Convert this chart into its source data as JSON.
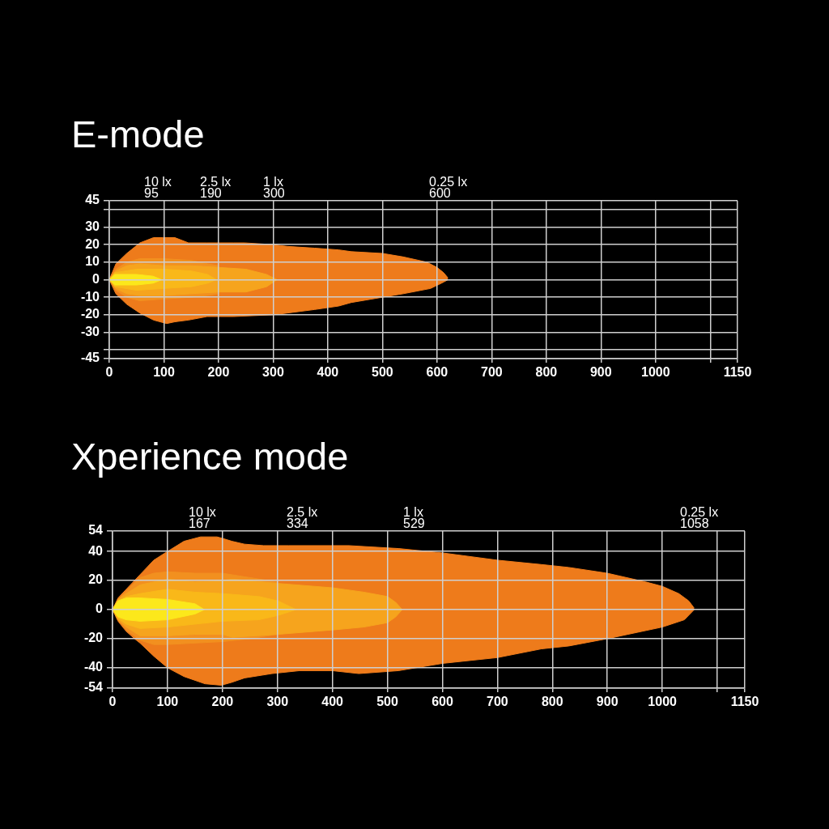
{
  "chart_data": [
    {
      "type": "area",
      "title": "E-mode",
      "xlim": [
        0,
        1150
      ],
      "xticks": [
        0,
        100,
        200,
        300,
        400,
        500,
        600,
        700,
        800,
        900,
        1000,
        {
          "value": 1100,
          "label": null
        },
        1150
      ],
      "ylim": [
        -45,
        45
      ],
      "yticks": [
        -45,
        {
          "value": -40,
          "label": null
        },
        -30,
        -20,
        -10,
        0,
        10,
        20,
        30,
        {
          "value": 40,
          "label": null
        },
        45
      ],
      "grid": true,
      "annotations": [
        "10 lx",
        "95",
        "2.5 lx",
        "190",
        "1 lx",
        "300",
        "0.25 lx",
        "600"
      ],
      "series": [
        {
          "color": "#ee7b1b",
          "x": [
            0,
            12,
            32,
            56,
            81,
            99,
            120,
            145,
            179,
            228,
            248,
            300,
            326,
            376,
            420,
            443,
            500,
            538,
            581,
            600,
            612,
            620
          ],
          "values": [
            0,
            9,
            15,
            21,
            24,
            24,
            24,
            21,
            21,
            21,
            21,
            20,
            19,
            18,
            17,
            16,
            15,
            13,
            10,
            7,
            4,
            1
          ]
        },
        {
          "color": "#ee7b1b",
          "x": [
            0,
            12,
            32,
            56,
            81,
            105,
            120,
            145,
            179,
            228,
            300,
            326,
            376,
            420,
            443,
            500,
            538,
            588,
            608,
            620
          ],
          "values": [
            0,
            -8,
            -14,
            -19,
            -23,
            -25,
            -24,
            -23,
            -21,
            -21,
            -20,
            -19,
            -17,
            -15,
            -13,
            -10,
            -8,
            -5,
            -2,
            0
          ]
        },
        {
          "color": "#f2901f",
          "x": [
            0,
            12,
            32,
            56,
            99,
            150,
            180,
            200,
            201
          ],
          "values": [
            0,
            6,
            10,
            12,
            12,
            11,
            9,
            8,
            0
          ]
        },
        {
          "color": "#f2901f",
          "x": [
            0,
            12,
            32,
            56,
            99,
            150,
            180,
            200,
            201
          ],
          "values": [
            0,
            -6,
            -10,
            -12,
            -11,
            -10,
            -9,
            -8,
            0
          ]
        },
        {
          "color": "#f6a41d",
          "x": [
            0,
            12,
            32,
            56,
            99,
            150,
            200,
            250,
            288,
            307
          ],
          "values": [
            0,
            5,
            8,
            9,
            8,
            8,
            7,
            6,
            3,
            0
          ]
        },
        {
          "color": "#f6a41d",
          "x": [
            0,
            12,
            32,
            56,
            99,
            150,
            200,
            250,
            288,
            307
          ],
          "values": [
            0,
            -5,
            -8,
            -9,
            -9,
            -8,
            -7,
            -7,
            -4,
            0
          ]
        },
        {
          "color": "#f9b819",
          "x": [
            0,
            10,
            50,
            100,
            150,
            180,
            196
          ],
          "values": [
            0,
            4,
            6,
            6,
            5,
            3,
            0
          ]
        },
        {
          "color": "#f9b819",
          "x": [
            0,
            10,
            50,
            100,
            150,
            180,
            196
          ],
          "values": [
            0,
            -4,
            -6,
            -5,
            -4,
            -2,
            0
          ]
        },
        {
          "color": "#fce81b",
          "x": [
            0,
            10,
            50,
            80,
            96
          ],
          "values": [
            0,
            3,
            3,
            2,
            0
          ]
        },
        {
          "color": "#fce81b",
          "x": [
            0,
            10,
            50,
            80,
            96
          ],
          "values": [
            0,
            -3,
            -3,
            -2,
            0
          ]
        }
      ]
    },
    {
      "type": "area",
      "title": "Xperience mode",
      "xlim": [
        0,
        1150
      ],
      "xticks": [
        0,
        100,
        200,
        300,
        400,
        500,
        600,
        700,
        800,
        900,
        1000,
        {
          "value": 1100,
          "label": null
        },
        1150
      ],
      "ylim": [
        -54,
        54
      ],
      "yticks": [
        -54,
        -40,
        -20,
        0,
        20,
        40,
        54
      ],
      "grid": true,
      "annotations": [
        "10 lx",
        "167",
        "2.5 lx",
        "334",
        "1 lx",
        "529",
        "0.25 lx",
        "1058"
      ],
      "series": [
        {
          "color": "#ee7b1b",
          "x": [
            0,
            10,
            25,
            40,
            50,
            75,
            100,
            130,
            160,
            190,
            200,
            217,
            240,
            275,
            320,
            400,
            430,
            520,
            600,
            700,
            780,
            830,
            900,
            970,
            1000,
            1030,
            1048,
            1058
          ],
          "values": [
            0,
            8,
            14,
            20,
            24,
            34,
            40,
            47,
            50,
            50,
            49,
            47,
            45,
            44,
            44,
            44,
            44,
            42,
            39,
            34,
            31,
            29,
            25,
            19,
            16,
            11,
            6,
            1
          ]
        },
        {
          "color": "#ee7b1b",
          "x": [
            0,
            10,
            25,
            40,
            50,
            75,
            100,
            130,
            168,
            198,
            217,
            240,
            290,
            340,
            400,
            448,
            520,
            600,
            700,
            780,
            830,
            900,
            1000,
            1040,
            1058
          ],
          "values": [
            0,
            -8,
            -15,
            -20,
            -23,
            -32,
            -40,
            -46,
            -51,
            -52,
            -50,
            -47,
            -44,
            -42,
            -42,
            -44,
            -42,
            -37,
            -33,
            -27,
            -25,
            -20,
            -12,
            -7,
            0
          ]
        },
        {
          "color": "#f2901f",
          "x": [
            0,
            10,
            25,
            50,
            75,
            100,
            150,
            200,
            250,
            300,
            301
          ],
          "values": [
            0,
            7,
            13,
            22,
            25,
            26,
            25,
            25,
            22,
            19,
            0
          ]
        },
        {
          "color": "#f2901f",
          "x": [
            0,
            10,
            25,
            50,
            75,
            100,
            150,
            200,
            250,
            300,
            301
          ],
          "values": [
            0,
            -7,
            -14,
            -21,
            -24,
            -24,
            -23,
            -22,
            -20,
            -17,
            0
          ]
        },
        {
          "color": "#f6a41d",
          "x": [
            0,
            10,
            25,
            50,
            100,
            150,
            200,
            218,
            301,
            400,
            457,
            500,
            515,
            527
          ],
          "values": [
            0,
            7,
            11,
            17,
            21,
            19,
            20,
            21,
            18,
            15,
            12,
            9,
            5,
            0
          ]
        },
        {
          "color": "#f6a41d",
          "x": [
            0,
            10,
            25,
            50,
            100,
            150,
            200,
            218,
            301,
            400,
            457,
            500,
            515,
            527
          ],
          "values": [
            0,
            -7,
            -12,
            -18,
            -18,
            -17,
            -17,
            -19,
            -17,
            -14,
            -12,
            -9,
            -5,
            0
          ]
        },
        {
          "color": "#f9b819",
          "x": [
            0,
            10,
            25,
            50,
            100,
            150,
            200,
            266,
            301,
            334
          ],
          "values": [
            0,
            6,
            9,
            11,
            14,
            12,
            11,
            9,
            6,
            0
          ]
        },
        {
          "color": "#f9b819",
          "x": [
            0,
            10,
            25,
            50,
            100,
            150,
            200,
            266,
            301,
            334
          ],
          "values": [
            0,
            -6,
            -10,
            -13,
            -12,
            -10,
            -8,
            -7,
            -4,
            0
          ]
        },
        {
          "color": "#fce81b",
          "x": [
            0,
            10,
            25,
            50,
            100,
            150,
            167
          ],
          "values": [
            0,
            6,
            8,
            8,
            7,
            4,
            0
          ]
        },
        {
          "color": "#fce81b",
          "x": [
            0,
            10,
            25,
            50,
            100,
            150,
            167
          ],
          "values": [
            0,
            -5,
            -7,
            -8,
            -7,
            -3,
            0
          ]
        }
      ]
    }
  ]
}
